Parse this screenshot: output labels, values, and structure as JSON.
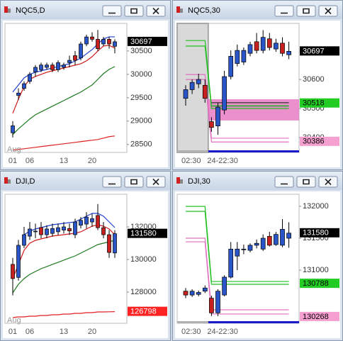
{
  "chart_data": [
    {
      "type": "candlestick",
      "title": "NQC5,D",
      "up_color": "#2a55c8",
      "down_color": "#c8201e",
      "categories": [
        "01",
        null,
        null,
        "06",
        null,
        null,
        null,
        null,
        null,
        "13",
        null,
        null,
        null,
        null,
        "20",
        null,
        null,
        null,
        null
      ],
      "x_sublabel": "Aug",
      "open": [
        28750,
        29550,
        29700,
        29850,
        30050,
        30100,
        30150,
        30200,
        30100,
        30150,
        30250,
        30400,
        30350,
        30650,
        30800,
        30750,
        30650,
        30750,
        30600
      ],
      "high": [
        29000,
        29700,
        29850,
        30050,
        30200,
        30250,
        30250,
        30250,
        30300,
        30250,
        30400,
        30500,
        30700,
        30850,
        30900,
        30950,
        30800,
        30800,
        30750
      ],
      "low": [
        28650,
        29450,
        29650,
        29800,
        29950,
        30050,
        30100,
        30050,
        30050,
        30100,
        30150,
        30200,
        30300,
        30600,
        30700,
        30500,
        30600,
        30550,
        30450
      ],
      "close": [
        28900,
        29600,
        29800,
        30000,
        30150,
        30200,
        30200,
        30100,
        30250,
        30200,
        30300,
        30300,
        30650,
        30800,
        30750,
        30550,
        30750,
        30650,
        30697
      ],
      "lines": [
        {
          "color": "#1f3fd0",
          "values": [
            29621,
            29773,
            29924,
            30000,
            30045,
            30076,
            30106,
            30136,
            30167,
            30197,
            30227,
            30288,
            30348,
            30439,
            30530,
            30652,
            30758,
            30803,
            30803
          ]
        },
        {
          "color": "#d01818",
          "values": [
            29167,
            29470,
            29742,
            29894,
            29955,
            30000,
            30045,
            30076,
            30106,
            30136,
            30167,
            30197,
            30227,
            30288,
            30379,
            30500,
            30606,
            30621,
            30561
          ]
        },
        {
          "color": "#1e7a1e",
          "values": [
            28712,
            28833,
            28939,
            29045,
            29136,
            29197,
            29258,
            29318,
            29379,
            29439,
            29500,
            29561,
            29621,
            29697,
            29773,
            29894,
            30015,
            30106,
            30167
          ]
        },
        {
          "color": "#e02020",
          "values": [
            28379,
            28394,
            28409,
            28424,
            28439,
            28455,
            28470,
            28485,
            28500,
            28515,
            28530,
            28545,
            28561,
            28576,
            28591,
            28606,
            28636,
            28667,
            28682
          ]
        }
      ],
      "ylim": [
        28330,
        31090
      ],
      "yticks": [
        28500,
        29000,
        29500,
        30000,
        30500
      ],
      "price_labels": [
        {
          "value": 30697,
          "bg": "#000000",
          "fg": "#ffffff"
        }
      ]
    },
    {
      "type": "candlestick",
      "title": "NQC5,30",
      "up_color": "#2a55c8",
      "down_color": "#c8201e",
      "session_break": true,
      "shade_before_break": true,
      "categories": [
        "02:30",
        null,
        null,
        null,
        "24-22:30",
        null,
        null,
        null,
        null,
        null,
        null,
        null,
        null,
        null,
        null,
        null,
        null
      ],
      "open": [
        30535,
        30565,
        30585,
        30580,
        30455,
        30440,
        30495,
        30610,
        30655,
        30660,
        30690,
        30730,
        30700,
        30740,
        30705,
        30725,
        30685
      ],
      "high": [
        30580,
        30600,
        30620,
        30600,
        30470,
        30520,
        30630,
        30700,
        30720,
        30710,
        30730,
        30760,
        30770,
        30760,
        30740,
        30745,
        30730
      ],
      "low": [
        30510,
        30550,
        30570,
        30520,
        30420,
        30410,
        30480,
        30600,
        30645,
        30650,
        30680,
        30690,
        30690,
        30700,
        30695,
        30680,
        30670
      ],
      "close": [
        30565,
        30590,
        30600,
        30535,
        30435,
        30505,
        30610,
        30680,
        30700,
        30700,
        30720,
        30700,
        30745,
        30710,
        30725,
        30690,
        30697
      ],
      "zone": [
        30459,
        30532
      ],
      "zone_color": "#e87cc4",
      "lines": [
        {
          "color": "#22c022",
          "values": [
            30734,
            30734,
            30734,
            30734,
            30510,
            30510,
            30510,
            30510,
            30510,
            30510,
            30510,
            30510,
            30510,
            30510,
            30510,
            30510,
            30510
          ]
        },
        {
          "color": "#22c022",
          "values": [
            30715,
            30715,
            30715,
            30715,
            30500,
            30500,
            30500,
            30500,
            30500,
            30500,
            30500,
            30500,
            30500,
            30500,
            30500,
            30500,
            30500
          ]
        },
        {
          "color": "#e070c0",
          "values": [
            30617,
            30617,
            30617,
            30617,
            30398,
            30398,
            30398,
            30398,
            30398,
            30398,
            30398,
            30398,
            30398,
            30398,
            30398,
            30398,
            30398
          ]
        },
        {
          "color": "#e070c0",
          "values": [
            30600,
            30600,
            30600,
            30600,
            30385,
            30385,
            30385,
            30385,
            30385,
            30385,
            30385,
            30385,
            30385,
            30385,
            30385,
            30385,
            30385
          ]
        },
        {
          "color": "#333333",
          "values": [
            null,
            null,
            null,
            null,
            30520,
            30520,
            30520,
            30520,
            30520,
            30520,
            30520,
            30520,
            30520,
            30520,
            30520,
            30520,
            30520
          ]
        },
        {
          "color": "#888888",
          "values": [
            null,
            null,
            null,
            null,
            30507,
            30507,
            30507,
            30507,
            30507,
            30507,
            30507,
            30507,
            30507,
            30507,
            30507,
            30507,
            30507
          ]
        }
      ],
      "ylim": [
        30349,
        30793
      ],
      "yticks": [
        30400,
        30500,
        30600
      ],
      "price_labels": [
        {
          "value": 30697,
          "bg": "#000000",
          "fg": "#ffffff"
        },
        {
          "value": 30518,
          "bg": "#22cc22",
          "fg": "#000000"
        },
        {
          "value": 30386,
          "bg": "#f5a0d0",
          "fg": "#000000"
        }
      ]
    },
    {
      "type": "candlestick",
      "title": "DJI,D",
      "up_color": "#2a55c8",
      "down_color": "#c8201e",
      "categories": [
        "01",
        null,
        null,
        "06",
        null,
        null,
        null,
        null,
        null,
        "13",
        null,
        null,
        null,
        null,
        "20",
        null,
        null,
        null,
        null
      ],
      "x_sublabel": "Aug",
      "open": [
        129700,
        128900,
        130870,
        131430,
        131700,
        131960,
        131520,
        131600,
        131700,
        131800,
        131900,
        131520,
        132100,
        132170,
        132300,
        132700,
        131950,
        131520,
        130400
      ],
      "high": [
        130100,
        131200,
        132000,
        132300,
        132200,
        132300,
        132100,
        132200,
        132200,
        132300,
        132200,
        132500,
        132600,
        132900,
        132800,
        133400,
        132300,
        131800,
        131800
      ],
      "low": [
        127800,
        128700,
        130700,
        131200,
        131300,
        131300,
        131300,
        131400,
        131500,
        131600,
        131500,
        131300,
        131900,
        131900,
        132000,
        131800,
        131300,
        130100,
        130100
      ],
      "close": [
        128830,
        130870,
        131520,
        131870,
        131740,
        131520,
        131870,
        131900,
        131950,
        132000,
        131750,
        132300,
        132400,
        132600,
        132500,
        131950,
        131520,
        130430,
        131580
      ],
      "lines": [
        {
          "color": "#1f3fd0",
          "values": [
            null,
            null,
            131522,
            131739,
            131870,
            131957,
            132043,
            132130,
            132174,
            132217,
            132261,
            132304,
            132478,
            132652,
            132826,
            132826,
            132652,
            132304,
            131957
          ]
        },
        {
          "color": "#d01818",
          "values": [
            128826,
            129696,
            130565,
            131000,
            131174,
            131261,
            131348,
            131435,
            131478,
            131522,
            131565,
            131609,
            131696,
            131870,
            132043,
            132130,
            132043,
            131870,
            131522
          ]
        },
        {
          "color": "#1e7a1e",
          "values": [
            127956,
            128478,
            128826,
            129087,
            129261,
            129435,
            129565,
            129696,
            129826,
            129957,
            130087,
            130217,
            130391,
            130565,
            130739,
            130913,
            131000,
            131087,
            131174
          ]
        },
        {
          "color": "#e02020",
          "values": [
            126435,
            126478,
            126478,
            126522,
            126522,
            126565,
            126565,
            126609,
            126609,
            126652,
            126652,
            126696,
            126696,
            126739,
            126739,
            126783,
            126783,
            126790,
            126798
          ]
        }
      ],
      "ylim": [
        126087,
        134000
      ],
      "yticks": [
        128000,
        130000,
        132000
      ],
      "price_labels": [
        {
          "value": 131580,
          "bg": "#000000",
          "fg": "#ffffff"
        },
        {
          "value": 126798,
          "bg": "#ff2222",
          "fg": "#ffffff"
        }
      ]
    },
    {
      "type": "candlestick",
      "title": "DJI,30",
      "up_color": "#2a55c8",
      "down_color": "#c8201e",
      "session_break": true,
      "categories": [
        "02:30",
        null,
        null,
        null,
        "24-22:30",
        null,
        null,
        null,
        null,
        null,
        null,
        null,
        null,
        null,
        null,
        null,
        null
      ],
      "open": [
        130670,
        130610,
        130620,
        130670,
        130560,
        130330,
        130610,
        130890,
        131220,
        131330,
        131310,
        131390,
        131330,
        131530,
        131400,
        131390,
        131500
      ],
      "high": [
        130720,
        130700,
        130680,
        130760,
        130600,
        130700,
        130920,
        131440,
        131440,
        131400,
        131420,
        131480,
        131560,
        131600,
        131600,
        131800,
        131750
      ],
      "low": [
        130560,
        130580,
        130590,
        130640,
        130280,
        130280,
        130590,
        130870,
        131000,
        131250,
        131280,
        131340,
        131300,
        131370,
        131380,
        131360,
        131350
      ],
      "close": [
        130610,
        130670,
        130650,
        130720,
        130330,
        130670,
        130890,
        131330,
        131330,
        131330,
        131390,
        131420,
        131500,
        131390,
        131560,
        131640,
        131580
      ],
      "lines": [
        {
          "color": "#22c022",
          "values": [
            131999,
            131999,
            131999,
            131999,
            130822,
            130822,
            130822,
            130822,
            130822,
            130822,
            130822,
            130822,
            130822,
            130822,
            130822,
            130822,
            130822
          ]
        },
        {
          "color": "#22c022",
          "values": [
            131921,
            131921,
            131921,
            131921,
            130778,
            130778,
            130778,
            130778,
            130778,
            130778,
            130778,
            130778,
            130778,
            130778,
            130778,
            130778,
            130778
          ]
        },
        {
          "color": "#e070c0",
          "values": [
            131500,
            131500,
            131500,
            131500,
            130378,
            130378,
            130378,
            130378,
            130378,
            130378,
            130378,
            130378,
            130378,
            130378,
            130378,
            130378,
            130378
          ]
        },
        {
          "color": "#e070c0",
          "values": [
            131444,
            131444,
            131444,
            131444,
            130312,
            130312,
            130312,
            130312,
            130312,
            130312,
            130312,
            130312,
            130312,
            130312,
            130312,
            130312,
            130312
          ]
        }
      ],
      "ylim": [
        130167,
        132189
      ],
      "yticks": [
        131000,
        131500,
        132000
      ],
      "price_labels": [
        {
          "value": 131580,
          "bg": "#000000",
          "fg": "#ffffff"
        },
        {
          "value": 130788,
          "bg": "#22cc22",
          "fg": "#000000"
        },
        {
          "value": 130268,
          "bg": "#f5a0d0",
          "fg": "#000000"
        }
      ]
    }
  ]
}
